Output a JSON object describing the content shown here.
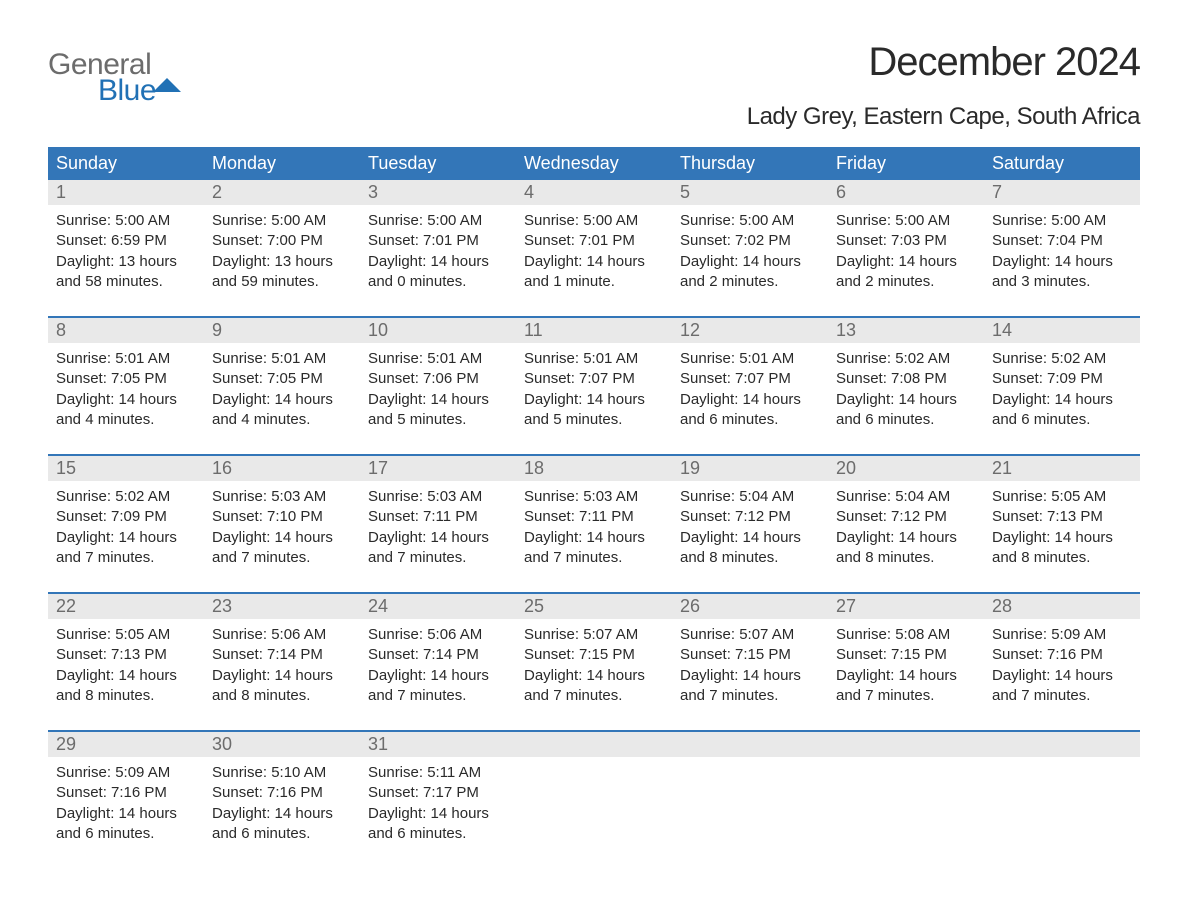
{
  "logo": {
    "text1": "General",
    "text2": "Blue"
  },
  "title": "December 2024",
  "location": "Lady Grey, Eastern Cape, South Africa",
  "colors": {
    "header_bg": "#3376b8",
    "header_text": "#ffffff",
    "daynum_bg": "#e9e9e9",
    "daynum_text": "#6c6c6c",
    "text": "#2a2a2a",
    "rule": "#3376b8",
    "logo_grey": "#6c6c6c",
    "logo_blue": "#2171b5"
  },
  "day_headers": [
    "Sunday",
    "Monday",
    "Tuesday",
    "Wednesday",
    "Thursday",
    "Friday",
    "Saturday"
  ],
  "weeks": [
    {
      "days": [
        {
          "n": "1",
          "sunrise": "Sunrise: 5:00 AM",
          "sunset": "Sunset: 6:59 PM",
          "d1": "Daylight: 13 hours",
          "d2": "and 58 minutes."
        },
        {
          "n": "2",
          "sunrise": "Sunrise: 5:00 AM",
          "sunset": "Sunset: 7:00 PM",
          "d1": "Daylight: 13 hours",
          "d2": "and 59 minutes."
        },
        {
          "n": "3",
          "sunrise": "Sunrise: 5:00 AM",
          "sunset": "Sunset: 7:01 PM",
          "d1": "Daylight: 14 hours",
          "d2": "and 0 minutes."
        },
        {
          "n": "4",
          "sunrise": "Sunrise: 5:00 AM",
          "sunset": "Sunset: 7:01 PM",
          "d1": "Daylight: 14 hours",
          "d2": "and 1 minute."
        },
        {
          "n": "5",
          "sunrise": "Sunrise: 5:00 AM",
          "sunset": "Sunset: 7:02 PM",
          "d1": "Daylight: 14 hours",
          "d2": "and 2 minutes."
        },
        {
          "n": "6",
          "sunrise": "Sunrise: 5:00 AM",
          "sunset": "Sunset: 7:03 PM",
          "d1": "Daylight: 14 hours",
          "d2": "and 2 minutes."
        },
        {
          "n": "7",
          "sunrise": "Sunrise: 5:00 AM",
          "sunset": "Sunset: 7:04 PM",
          "d1": "Daylight: 14 hours",
          "d2": "and 3 minutes."
        }
      ]
    },
    {
      "days": [
        {
          "n": "8",
          "sunrise": "Sunrise: 5:01 AM",
          "sunset": "Sunset: 7:05 PM",
          "d1": "Daylight: 14 hours",
          "d2": "and 4 minutes."
        },
        {
          "n": "9",
          "sunrise": "Sunrise: 5:01 AM",
          "sunset": "Sunset: 7:05 PM",
          "d1": "Daylight: 14 hours",
          "d2": "and 4 minutes."
        },
        {
          "n": "10",
          "sunrise": "Sunrise: 5:01 AM",
          "sunset": "Sunset: 7:06 PM",
          "d1": "Daylight: 14 hours",
          "d2": "and 5 minutes."
        },
        {
          "n": "11",
          "sunrise": "Sunrise: 5:01 AM",
          "sunset": "Sunset: 7:07 PM",
          "d1": "Daylight: 14 hours",
          "d2": "and 5 minutes."
        },
        {
          "n": "12",
          "sunrise": "Sunrise: 5:01 AM",
          "sunset": "Sunset: 7:07 PM",
          "d1": "Daylight: 14 hours",
          "d2": "and 6 minutes."
        },
        {
          "n": "13",
          "sunrise": "Sunrise: 5:02 AM",
          "sunset": "Sunset: 7:08 PM",
          "d1": "Daylight: 14 hours",
          "d2": "and 6 minutes."
        },
        {
          "n": "14",
          "sunrise": "Sunrise: 5:02 AM",
          "sunset": "Sunset: 7:09 PM",
          "d1": "Daylight: 14 hours",
          "d2": "and 6 minutes."
        }
      ]
    },
    {
      "days": [
        {
          "n": "15",
          "sunrise": "Sunrise: 5:02 AM",
          "sunset": "Sunset: 7:09 PM",
          "d1": "Daylight: 14 hours",
          "d2": "and 7 minutes."
        },
        {
          "n": "16",
          "sunrise": "Sunrise: 5:03 AM",
          "sunset": "Sunset: 7:10 PM",
          "d1": "Daylight: 14 hours",
          "d2": "and 7 minutes."
        },
        {
          "n": "17",
          "sunrise": "Sunrise: 5:03 AM",
          "sunset": "Sunset: 7:11 PM",
          "d1": "Daylight: 14 hours",
          "d2": "and 7 minutes."
        },
        {
          "n": "18",
          "sunrise": "Sunrise: 5:03 AM",
          "sunset": "Sunset: 7:11 PM",
          "d1": "Daylight: 14 hours",
          "d2": "and 7 minutes."
        },
        {
          "n": "19",
          "sunrise": "Sunrise: 5:04 AM",
          "sunset": "Sunset: 7:12 PM",
          "d1": "Daylight: 14 hours",
          "d2": "and 8 minutes."
        },
        {
          "n": "20",
          "sunrise": "Sunrise: 5:04 AM",
          "sunset": "Sunset: 7:12 PM",
          "d1": "Daylight: 14 hours",
          "d2": "and 8 minutes."
        },
        {
          "n": "21",
          "sunrise": "Sunrise: 5:05 AM",
          "sunset": "Sunset: 7:13 PM",
          "d1": "Daylight: 14 hours",
          "d2": "and 8 minutes."
        }
      ]
    },
    {
      "days": [
        {
          "n": "22",
          "sunrise": "Sunrise: 5:05 AM",
          "sunset": "Sunset: 7:13 PM",
          "d1": "Daylight: 14 hours",
          "d2": "and 8 minutes."
        },
        {
          "n": "23",
          "sunrise": "Sunrise: 5:06 AM",
          "sunset": "Sunset: 7:14 PM",
          "d1": "Daylight: 14 hours",
          "d2": "and 8 minutes."
        },
        {
          "n": "24",
          "sunrise": "Sunrise: 5:06 AM",
          "sunset": "Sunset: 7:14 PM",
          "d1": "Daylight: 14 hours",
          "d2": "and 7 minutes."
        },
        {
          "n": "25",
          "sunrise": "Sunrise: 5:07 AM",
          "sunset": "Sunset: 7:15 PM",
          "d1": "Daylight: 14 hours",
          "d2": "and 7 minutes."
        },
        {
          "n": "26",
          "sunrise": "Sunrise: 5:07 AM",
          "sunset": "Sunset: 7:15 PM",
          "d1": "Daylight: 14 hours",
          "d2": "and 7 minutes."
        },
        {
          "n": "27",
          "sunrise": "Sunrise: 5:08 AM",
          "sunset": "Sunset: 7:15 PM",
          "d1": "Daylight: 14 hours",
          "d2": "and 7 minutes."
        },
        {
          "n": "28",
          "sunrise": "Sunrise: 5:09 AM",
          "sunset": "Sunset: 7:16 PM",
          "d1": "Daylight: 14 hours",
          "d2": "and 7 minutes."
        }
      ]
    },
    {
      "days": [
        {
          "n": "29",
          "sunrise": "Sunrise: 5:09 AM",
          "sunset": "Sunset: 7:16 PM",
          "d1": "Daylight: 14 hours",
          "d2": "and 6 minutes."
        },
        {
          "n": "30",
          "sunrise": "Sunrise: 5:10 AM",
          "sunset": "Sunset: 7:16 PM",
          "d1": "Daylight: 14 hours",
          "d2": "and 6 minutes."
        },
        {
          "n": "31",
          "sunrise": "Sunrise: 5:11 AM",
          "sunset": "Sunset: 7:17 PM",
          "d1": "Daylight: 14 hours",
          "d2": "and 6 minutes."
        },
        null,
        null,
        null,
        null
      ]
    }
  ]
}
